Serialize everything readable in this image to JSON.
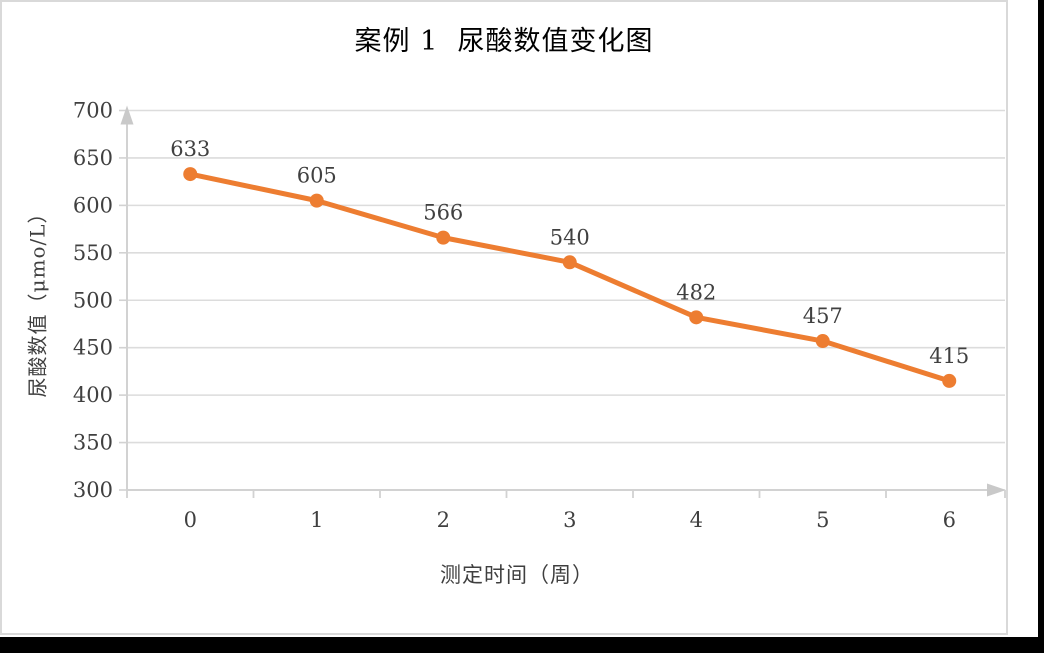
{
  "chart_data": {
    "type": "line",
    "title": "案例 1  尿酸数值变化图",
    "xlabel": "测定时间（周）",
    "ylabel": "尿酸数值（μmo/L）",
    "categories": [
      "0",
      "1",
      "2",
      "3",
      "4",
      "5",
      "6"
    ],
    "values": [
      633,
      605,
      566,
      540,
      482,
      457,
      415
    ],
    "yticks": [
      700,
      650,
      600,
      550,
      500,
      450,
      400,
      350,
      300
    ],
    "ylim": [
      300,
      700
    ],
    "ytick_step": 50,
    "grid": "horizontal",
    "legend": "none",
    "data_labels": "above-points",
    "colors": {
      "series": "#ED7D31",
      "gridline": "#DCDCDC",
      "axis": "#D2D2D2",
      "arrow": "#C9C9C9",
      "tick_label": "#404040",
      "data_label": "#404040",
      "title": "#000000",
      "frame_border": "#D9D9D9",
      "page_bg": "#FFFFFF",
      "outer_bg": "#000000"
    }
  }
}
